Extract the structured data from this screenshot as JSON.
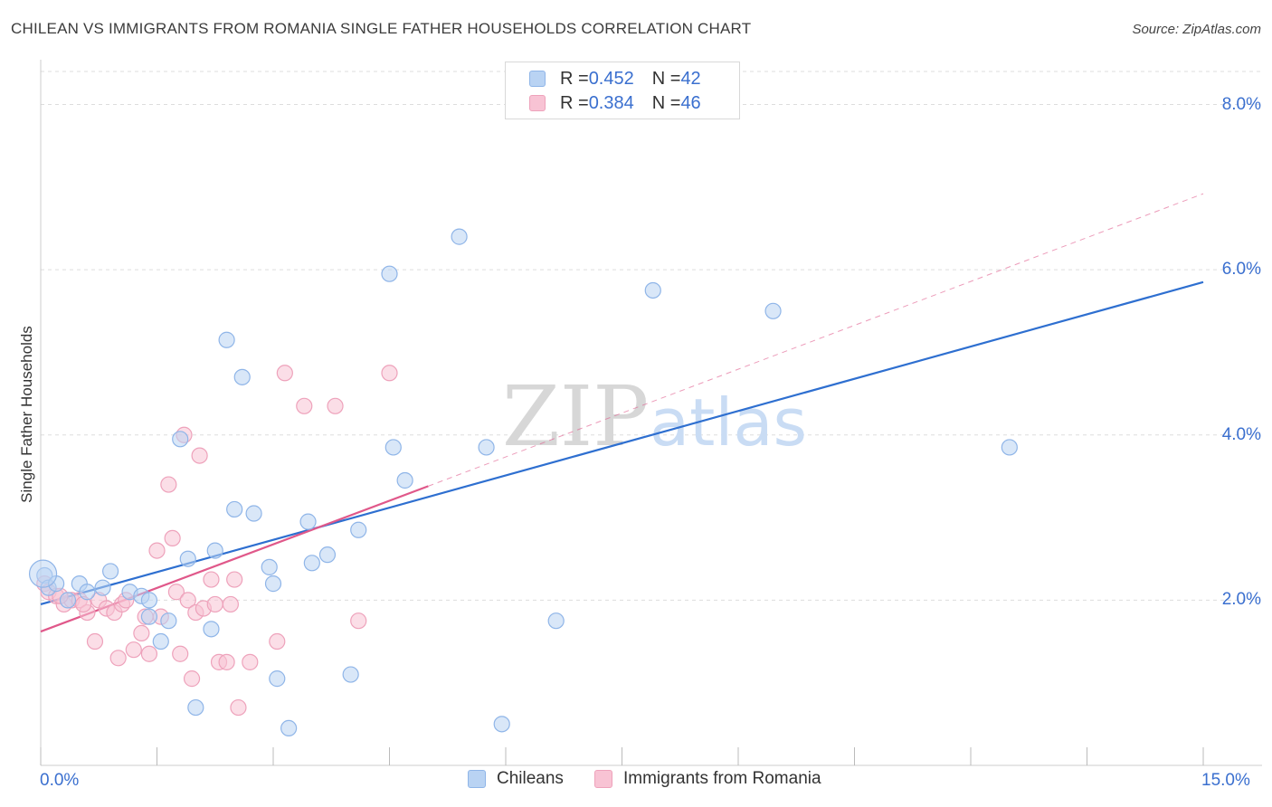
{
  "header": {
    "title": "CHILEAN VS IMMIGRANTS FROM ROMANIA SINGLE FATHER HOUSEHOLDS CORRELATION CHART",
    "source": "Source: ZipAtlas.com"
  },
  "watermark": {
    "zip": "ZIP",
    "atlas": "atlas"
  },
  "colors": {
    "blue_fill": "#b9d3f3",
    "blue_stroke": "#8fb5e8",
    "blue_line": "#2e6fd0",
    "pink_fill": "#f8c3d4",
    "pink_stroke": "#eea2bb",
    "pink_line": "#e0588a",
    "axis_text": "#3a6fcf",
    "grid": "#dddddd"
  },
  "legend_top": {
    "rows": [
      {
        "r_label": "R = ",
        "r_value": "0.452",
        "n_label": "N = ",
        "n_value": "42"
      },
      {
        "r_label": "R = ",
        "r_value": "0.384",
        "n_label": "N = ",
        "n_value": "46"
      }
    ]
  },
  "legend_bottom": {
    "series1": "Chileans",
    "series2": "Immigrants from Romania"
  },
  "chart_data": {
    "type": "scatter",
    "title": "CHILEAN VS IMMIGRANTS FROM ROMANIA SINGLE FATHER HOUSEHOLDS CORRELATION CHART",
    "xlabel": "",
    "ylabel": "Single Father Households",
    "xlim": [
      0,
      15
    ],
    "ylim": [
      0,
      8.4
    ],
    "x_tick_labels": [
      "0.0%",
      "15.0%"
    ],
    "y_ticks": [
      2,
      4,
      6,
      8
    ],
    "y_tick_labels": [
      "2.0%",
      "4.0%",
      "6.0%",
      "8.0%"
    ],
    "series": [
      {
        "name": "Chileans",
        "R": 0.452,
        "N": 42,
        "points": [
          [
            0.05,
            2.3
          ],
          [
            0.1,
            2.15
          ],
          [
            0.2,
            2.2
          ],
          [
            0.35,
            2.0
          ],
          [
            0.5,
            2.2
          ],
          [
            0.6,
            2.1
          ],
          [
            0.8,
            2.15
          ],
          [
            0.9,
            2.35
          ],
          [
            1.15,
            2.1
          ],
          [
            1.3,
            2.05
          ],
          [
            1.4,
            1.8
          ],
          [
            1.55,
            1.5
          ],
          [
            1.65,
            1.75
          ],
          [
            1.8,
            3.95
          ],
          [
            1.9,
            2.5
          ],
          [
            2.0,
            0.7
          ],
          [
            2.2,
            1.65
          ],
          [
            2.25,
            2.6
          ],
          [
            2.4,
            5.15
          ],
          [
            2.6,
            4.7
          ],
          [
            2.5,
            3.1
          ],
          [
            2.75,
            3.05
          ],
          [
            2.95,
            2.4
          ],
          [
            3.0,
            2.2
          ],
          [
            3.05,
            1.05
          ],
          [
            3.2,
            0.45
          ],
          [
            3.45,
            2.95
          ],
          [
            3.5,
            2.45
          ],
          [
            3.7,
            2.55
          ],
          [
            4.0,
            1.1
          ],
          [
            4.1,
            2.85
          ],
          [
            4.5,
            5.95
          ],
          [
            4.55,
            3.85
          ],
          [
            4.7,
            3.45
          ],
          [
            5.4,
            6.4
          ],
          [
            5.75,
            3.85
          ],
          [
            5.95,
            0.5
          ],
          [
            6.65,
            1.75
          ],
          [
            7.9,
            5.75
          ],
          [
            9.45,
            5.5
          ],
          [
            12.5,
            3.85
          ],
          [
            1.4,
            2.0
          ]
        ],
        "trend": {
          "x0": 0,
          "y0": 1.95,
          "x1": 15,
          "y1": 5.85
        }
      },
      {
        "name": "Immigrants from Romania",
        "R": 0.384,
        "N": 46,
        "points": [
          [
            0.05,
            2.2
          ],
          [
            0.1,
            2.1
          ],
          [
            0.2,
            2.05
          ],
          [
            0.3,
            1.95
          ],
          [
            0.4,
            2.0
          ],
          [
            0.5,
            2.0
          ],
          [
            0.6,
            1.85
          ],
          [
            0.7,
            1.5
          ],
          [
            0.75,
            2.0
          ],
          [
            0.85,
            1.9
          ],
          [
            0.95,
            1.85
          ],
          [
            1.0,
            1.3
          ],
          [
            1.05,
            1.95
          ],
          [
            1.1,
            2.0
          ],
          [
            1.2,
            1.4
          ],
          [
            1.3,
            1.6
          ],
          [
            1.35,
            1.8
          ],
          [
            1.4,
            1.35
          ],
          [
            1.5,
            2.6
          ],
          [
            1.55,
            1.8
          ],
          [
            1.65,
            3.4
          ],
          [
            1.7,
            2.75
          ],
          [
            1.75,
            2.1
          ],
          [
            1.8,
            1.35
          ],
          [
            1.85,
            4.0
          ],
          [
            1.9,
            2.0
          ],
          [
            1.95,
            1.05
          ],
          [
            2.0,
            1.85
          ],
          [
            2.05,
            3.75
          ],
          [
            2.1,
            1.9
          ],
          [
            2.2,
            2.25
          ],
          [
            2.25,
            1.95
          ],
          [
            2.3,
            1.25
          ],
          [
            2.4,
            1.25
          ],
          [
            2.45,
            1.95
          ],
          [
            2.5,
            2.25
          ],
          [
            2.55,
            0.7
          ],
          [
            2.7,
            1.25
          ],
          [
            3.05,
            1.5
          ],
          [
            3.15,
            4.75
          ],
          [
            3.4,
            4.35
          ],
          [
            3.8,
            4.35
          ],
          [
            4.1,
            1.75
          ],
          [
            4.5,
            4.75
          ],
          [
            0.55,
            1.95
          ],
          [
            0.25,
            2.05
          ]
        ],
        "trend": {
          "x0": 0,
          "y0": 1.62,
          "x1": 5.0,
          "y1": 3.38
        },
        "trend_dashed": {
          "x0": 5.0,
          "y0": 3.38,
          "x1": 15,
          "y1": 6.92
        }
      }
    ]
  }
}
